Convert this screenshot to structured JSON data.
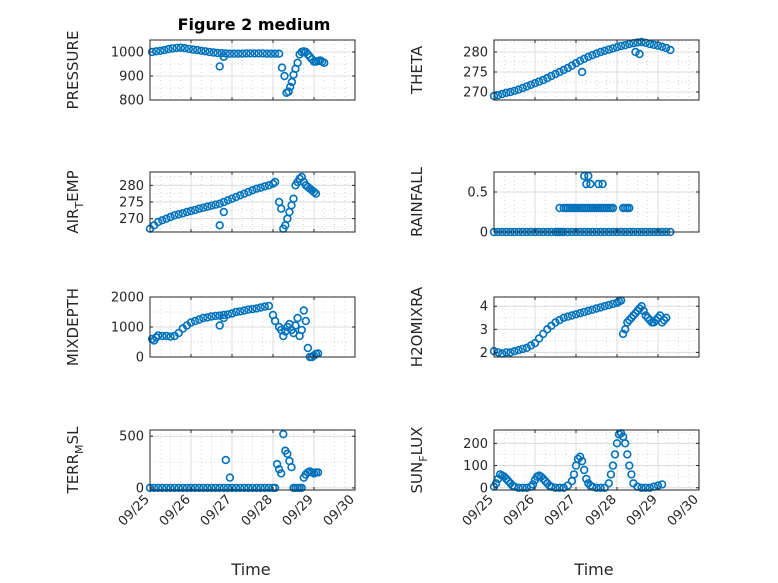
{
  "figure": {
    "title": "Figure 2 medium",
    "xlabel": "Time",
    "marker_color": "#0072BD"
  },
  "chart_data": [
    {
      "type": "scatter",
      "ylabel_main": "PRESSURE",
      "ylabel_sub": "",
      "ylabel_tail": "",
      "ylim": [
        800,
        1050
      ],
      "yticks": [
        800,
        900,
        1000
      ],
      "yminor": [
        850,
        950
      ],
      "xlim": [
        0,
        5
      ],
      "xticks": [
        0,
        1,
        2,
        3,
        4,
        5
      ],
      "xticklabels": [
        "09/25",
        "09/26",
        "09/27",
        "09/28",
        "09/29",
        "09/30"
      ],
      "show_xticklabels": false,
      "grid": true,
      "x": [
        0.05,
        0.15,
        0.25,
        0.35,
        0.45,
        0.55,
        0.65,
        0.75,
        0.85,
        0.95,
        1.05,
        1.15,
        1.25,
        1.35,
        1.45,
        1.55,
        1.65,
        1.75,
        1.85,
        1.95,
        2.05,
        2.15,
        2.25,
        2.35,
        2.45,
        2.55,
        2.65,
        2.75,
        2.85,
        2.95,
        3.05,
        3.15,
        3.22,
        3.28,
        3.33,
        3.38,
        3.42,
        3.46,
        3.5,
        3.55,
        3.6,
        3.65,
        3.7,
        3.75,
        3.8,
        3.85,
        3.9,
        3.95,
        4.0,
        4.05,
        4.1,
        4.15,
        4.2,
        4.25,
        1.7,
        1.8
      ],
      "y": [
        1000,
        1003,
        1005,
        1008,
        1012,
        1015,
        1017,
        1018,
        1016,
        1013,
        1010,
        1008,
        1005,
        1003,
        1000,
        998,
        996,
        995,
        994,
        993,
        993,
        993,
        993,
        994,
        994,
        994,
        994,
        994,
        993,
        993,
        993,
        993,
        935,
        900,
        830,
        835,
        855,
        875,
        905,
        930,
        955,
        990,
        1000,
        1003,
        1000,
        990,
        980,
        970,
        960,
        960,
        962,
        965,
        960,
        955,
        940,
        980
      ]
    },
    {
      "type": "scatter",
      "ylabel_main": "THETA",
      "ylabel_sub": "",
      "ylabel_tail": "",
      "ylim": [
        268,
        283
      ],
      "yticks": [
        270,
        275,
        280
      ],
      "yminor": [
        272.5,
        277.5,
        282.5
      ],
      "xlim": [
        0,
        5
      ],
      "xticks": [
        0,
        1,
        2,
        3,
        4,
        5
      ],
      "xticklabels": [
        "09/25",
        "09/26",
        "09/27",
        "09/28",
        "09/29",
        "09/30"
      ],
      "show_xticklabels": false,
      "grid": true,
      "x": [
        0.0,
        0.1,
        0.2,
        0.3,
        0.4,
        0.5,
        0.6,
        0.7,
        0.8,
        0.9,
        1.0,
        1.1,
        1.2,
        1.3,
        1.4,
        1.5,
        1.6,
        1.7,
        1.8,
        1.9,
        2.0,
        2.1,
        2.2,
        2.3,
        2.4,
        2.5,
        2.6,
        2.7,
        2.8,
        2.9,
        3.0,
        3.1,
        3.2,
        3.3,
        3.4,
        3.5,
        3.6,
        3.7,
        3.8,
        3.9,
        4.0,
        4.1,
        4.2,
        4.3,
        2.15,
        3.45,
        3.55
      ],
      "y": [
        269,
        269.2,
        269.5,
        269.8,
        270,
        270.3,
        270.6,
        271,
        271.4,
        271.8,
        272.2,
        272.6,
        273,
        273.5,
        274,
        274.5,
        275,
        275.5,
        276,
        276.6,
        277.2,
        277.8,
        278.3,
        278.8,
        279.2,
        279.6,
        280,
        280.3,
        280.6,
        280.9,
        281.2,
        281.5,
        281.7,
        282,
        282.2,
        282.4,
        282.5,
        282.3,
        282,
        281.8,
        281.6,
        281.3,
        281,
        280.5,
        275,
        280,
        279.5
      ]
    },
    {
      "type": "scatter",
      "ylabel_main": "AIR",
      "ylabel_sub": "T",
      "ylabel_tail": "EMP",
      "ylim": [
        266,
        284
      ],
      "yticks": [
        270,
        275,
        280
      ],
      "yminor": [
        267.5,
        272.5,
        277.5,
        282.5
      ],
      "xlim": [
        0,
        5
      ],
      "xticks": [
        0,
        1,
        2,
        3,
        4,
        5
      ],
      "xticklabels": [
        "09/25",
        "09/26",
        "09/27",
        "09/28",
        "09/29",
        "09/30"
      ],
      "show_xticklabels": false,
      "grid": true,
      "x": [
        0.0,
        0.1,
        0.2,
        0.3,
        0.4,
        0.5,
        0.6,
        0.7,
        0.8,
        0.9,
        1.0,
        1.1,
        1.2,
        1.3,
        1.4,
        1.5,
        1.6,
        1.7,
        1.8,
        1.9,
        2.0,
        2.1,
        2.2,
        2.3,
        2.4,
        2.5,
        2.6,
        2.7,
        2.8,
        2.9,
        3.0,
        3.05,
        3.15,
        3.2,
        3.25,
        3.3,
        3.35,
        3.4,
        3.45,
        3.5,
        3.55,
        3.6,
        3.65,
        3.7,
        3.75,
        3.8,
        3.85,
        3.9,
        3.95,
        4.0,
        4.05,
        1.7,
        1.8
      ],
      "y": [
        267,
        268,
        269,
        269.5,
        270,
        270.5,
        271,
        271.3,
        271.6,
        272,
        272.3,
        272.6,
        273,
        273.3,
        273.6,
        273.9,
        274.2,
        274.5,
        275,
        275.5,
        276,
        276.5,
        277,
        277.5,
        278,
        278.5,
        279,
        279.3,
        279.7,
        280,
        280.5,
        281,
        275,
        273,
        267,
        268,
        270,
        272,
        274,
        276,
        280,
        281,
        282,
        282.5,
        281,
        280,
        279.5,
        279,
        278.5,
        278,
        277.5,
        268,
        272
      ]
    },
    {
      "type": "scatter",
      "ylabel_main": "RAINFALL",
      "ylabel_sub": "",
      "ylabel_tail": "",
      "ylim": [
        0,
        0.75
      ],
      "yticks": [
        0,
        0.5
      ],
      "yminor": [
        0.25
      ],
      "xlim": [
        0,
        5
      ],
      "xticks": [
        0,
        1,
        2,
        3,
        4,
        5
      ],
      "xticklabels": [
        "09/25",
        "09/26",
        "09/27",
        "09/28",
        "09/29",
        "09/30"
      ],
      "show_xticklabels": false,
      "grid": true,
      "x": [
        0.0,
        0.1,
        0.2,
        0.3,
        0.4,
        0.5,
        0.6,
        0.7,
        0.8,
        0.9,
        1.0,
        1.1,
        1.2,
        1.3,
        1.4,
        1.5,
        1.6,
        1.7,
        1.8,
        1.9,
        2.0,
        2.1,
        2.2,
        2.3,
        2.4,
        2.5,
        2.6,
        2.7,
        2.8,
        2.9,
        3.0,
        3.1,
        3.2,
        3.3,
        3.4,
        3.5,
        3.6,
        3.7,
        3.8,
        3.9,
        4.0,
        4.1,
        4.2,
        4.3,
        1.6,
        1.7,
        1.75,
        1.8,
        1.85,
        1.9,
        1.95,
        2.0,
        2.05,
        2.1,
        2.15,
        2.2,
        2.25,
        2.3,
        2.35,
        2.4,
        2.45,
        2.5,
        2.55,
        2.6,
        2.65,
        2.7,
        2.75,
        2.8,
        2.85,
        2.9,
        3.15,
        3.2,
        3.25,
        3.3,
        2.25,
        2.35,
        2.55,
        2.65,
        2.2,
        2.3,
        1.55,
        1.65
      ],
      "y": [
        0,
        0,
        0,
        0,
        0,
        0,
        0,
        0,
        0,
        0,
        0,
        0,
        0,
        0,
        0,
        0,
        0,
        0,
        0,
        0,
        0,
        0,
        0,
        0,
        0,
        0,
        0,
        0,
        0,
        0,
        0,
        0,
        0,
        0,
        0,
        0,
        0,
        0,
        0,
        0,
        0,
        0,
        0,
        0,
        0.3,
        0.3,
        0.3,
        0.3,
        0.3,
        0.3,
        0.3,
        0.3,
        0.3,
        0.3,
        0.3,
        0.3,
        0.3,
        0.3,
        0.3,
        0.3,
        0.3,
        0.3,
        0.3,
        0.3,
        0.3,
        0.3,
        0.3,
        0.3,
        0.3,
        0.3,
        0.3,
        0.3,
        0.3,
        0.3,
        0.6,
        0.6,
        0.6,
        0.6,
        0.7,
        0.7,
        0,
        0
      ]
    },
    {
      "type": "scatter",
      "ylabel_main": "MIXDEPTH",
      "ylabel_sub": "",
      "ylabel_tail": "",
      "ylim": [
        0,
        2000
      ],
      "yticks": [
        0,
        1000,
        2000
      ],
      "yminor": [
        500,
        1500
      ],
      "xlim": [
        0,
        5
      ],
      "xticks": [
        0,
        1,
        2,
        3,
        4,
        5
      ],
      "xticklabels": [
        "09/25",
        "09/26",
        "09/27",
        "09/28",
        "09/29",
        "09/30"
      ],
      "show_xticklabels": false,
      "grid": true,
      "x": [
        0.05,
        0.1,
        0.15,
        0.2,
        0.3,
        0.4,
        0.5,
        0.6,
        0.7,
        0.8,
        0.9,
        1.0,
        1.1,
        1.2,
        1.3,
        1.4,
        1.5,
        1.6,
        1.7,
        1.8,
        1.9,
        2.0,
        2.1,
        2.2,
        2.3,
        2.4,
        2.5,
        2.6,
        2.7,
        2.8,
        2.9,
        3.0,
        3.05,
        3.15,
        3.2,
        3.25,
        3.3,
        3.35,
        3.4,
        3.45,
        3.5,
        3.55,
        3.6,
        3.65,
        3.7,
        3.75,
        3.8,
        3.85,
        3.9,
        3.95,
        4.0,
        4.05,
        4.1,
        1.7,
        1.8
      ],
      "y": [
        600,
        550,
        650,
        720,
        700,
        700,
        680,
        700,
        800,
        950,
        1050,
        1150,
        1200,
        1250,
        1300,
        1320,
        1350,
        1370,
        1380,
        1400,
        1420,
        1450,
        1500,
        1520,
        1550,
        1580,
        1600,
        1620,
        1650,
        1680,
        1700,
        1400,
        1200,
        1000,
        900,
        700,
        850,
        1000,
        1100,
        900,
        800,
        1050,
        1300,
        700,
        900,
        1550,
        1200,
        300,
        0,
        0,
        50,
        100,
        120,
        1050,
        1300
      ]
    },
    {
      "type": "scatter",
      "ylabel_main": "H2OMIXRA",
      "ylabel_sub": "",
      "ylabel_tail": "",
      "ylim": [
        1.8,
        4.4
      ],
      "yticks": [
        2,
        3,
        4
      ],
      "yminor": [
        2.5,
        3.5
      ],
      "xlim": [
        0,
        5
      ],
      "xticks": [
        0,
        1,
        2,
        3,
        4,
        5
      ],
      "xticklabels": [
        "09/25",
        "09/26",
        "09/27",
        "09/28",
        "09/29",
        "09/30"
      ],
      "show_xticklabels": false,
      "grid": true,
      "x": [
        0.0,
        0.1,
        0.2,
        0.3,
        0.4,
        0.5,
        0.6,
        0.7,
        0.8,
        0.9,
        1.0,
        1.1,
        1.2,
        1.3,
        1.4,
        1.5,
        1.6,
        1.7,
        1.8,
        1.9,
        2.0,
        2.1,
        2.2,
        2.3,
        2.4,
        2.5,
        2.6,
        2.7,
        2.8,
        2.9,
        3.0,
        3.05,
        3.1,
        3.15,
        3.2,
        3.25,
        3.3,
        3.35,
        3.4,
        3.45,
        3.5,
        3.55,
        3.6,
        3.65,
        3.7,
        3.75,
        3.8,
        3.85,
        3.9,
        3.95,
        4.0,
        4.05,
        4.1,
        4.15,
        4.2
      ],
      "y": [
        2.05,
        2.0,
        1.95,
        2.0,
        2.0,
        2.05,
        2.1,
        2.15,
        2.2,
        2.3,
        2.4,
        2.6,
        2.8,
        3.0,
        3.15,
        3.3,
        3.4,
        3.5,
        3.55,
        3.6,
        3.65,
        3.7,
        3.75,
        3.8,
        3.85,
        3.9,
        3.95,
        4.0,
        4.05,
        4.1,
        4.15,
        4.2,
        4.25,
        2.8,
        3.0,
        3.3,
        3.4,
        3.5,
        3.6,
        3.7,
        3.8,
        3.9,
        4.0,
        3.8,
        3.6,
        3.5,
        3.4,
        3.3,
        3.3,
        3.4,
        3.5,
        3.6,
        3.3,
        3.4,
        3.5
      ]
    },
    {
      "type": "scatter",
      "ylabel_main": "TERR",
      "ylabel_sub": "M",
      "ylabel_tail": "SL",
      "ylim": [
        -20,
        560
      ],
      "yticks": [
        0,
        500
      ],
      "yminor": [
        250
      ],
      "xlim": [
        0,
        5
      ],
      "xticks": [
        0,
        1,
        2,
        3,
        4,
        5
      ],
      "xticklabels": [
        "09/25",
        "09/26",
        "09/27",
        "09/28",
        "09/29",
        "09/30"
      ],
      "show_xticklabels": true,
      "grid": true,
      "x": [
        0.0,
        0.1,
        0.2,
        0.3,
        0.4,
        0.5,
        0.6,
        0.7,
        0.8,
        0.9,
        1.0,
        1.1,
        1.2,
        1.3,
        1.4,
        1.5,
        1.6,
        1.7,
        1.8,
        1.9,
        2.0,
        2.1,
        2.2,
        2.3,
        2.4,
        2.5,
        2.6,
        2.7,
        2.8,
        2.9,
        3.0,
        3.05,
        3.1,
        3.15,
        3.2,
        3.25,
        3.3,
        3.35,
        3.4,
        3.45,
        3.5,
        3.55,
        3.6,
        3.65,
        3.7,
        3.75,
        3.8,
        3.85,
        3.9,
        3.95,
        4.0,
        4.05,
        4.1,
        1.85,
        1.95
      ],
      "y": [
        0,
        0,
        0,
        0,
        0,
        0,
        0,
        0,
        0,
        0,
        0,
        0,
        0,
        0,
        0,
        0,
        0,
        0,
        0,
        0,
        0,
        0,
        0,
        0,
        0,
        0,
        0,
        0,
        0,
        0,
        0,
        0,
        230,
        180,
        140,
        520,
        360,
        330,
        260,
        200,
        0,
        0,
        0,
        0,
        0,
        100,
        130,
        150,
        160,
        150,
        140,
        150,
        150,
        270,
        100
      ]
    },
    {
      "type": "scatter",
      "ylabel_main": "SUN",
      "ylabel_sub": "F",
      "ylabel_tail": "LUX",
      "ylim": [
        -10,
        260
      ],
      "yticks": [
        0,
        100,
        200
      ],
      "yminor": [
        50,
        150,
        250
      ],
      "xlim": [
        0,
        5
      ],
      "xticks": [
        0,
        1,
        2,
        3,
        4,
        5
      ],
      "xticklabels": [
        "09/25",
        "09/26",
        "09/27",
        "09/28",
        "09/29",
        "09/30"
      ],
      "show_xticklabels": true,
      "grid": true,
      "x": [
        0.0,
        0.05,
        0.1,
        0.15,
        0.2,
        0.25,
        0.3,
        0.35,
        0.4,
        0.45,
        0.5,
        0.6,
        0.7,
        0.8,
        0.9,
        0.95,
        1.0,
        1.05,
        1.1,
        1.15,
        1.2,
        1.25,
        1.3,
        1.35,
        1.4,
        1.5,
        1.6,
        1.7,
        1.8,
        1.9,
        1.95,
        2.0,
        2.05,
        2.1,
        2.15,
        2.2,
        2.25,
        2.3,
        2.35,
        2.4,
        2.5,
        2.6,
        2.7,
        2.8,
        2.85,
        2.9,
        2.95,
        3.0,
        3.05,
        3.1,
        3.15,
        3.2,
        3.25,
        3.3,
        3.35,
        3.4,
        3.5,
        3.6,
        3.7,
        3.8,
        3.9,
        4.0,
        4.1
      ],
      "y": [
        5,
        20,
        40,
        60,
        55,
        50,
        40,
        30,
        20,
        10,
        5,
        0,
        0,
        0,
        5,
        15,
        35,
        50,
        55,
        50,
        40,
        30,
        20,
        10,
        5,
        0,
        0,
        0,
        10,
        30,
        60,
        100,
        130,
        140,
        120,
        80,
        40,
        20,
        10,
        5,
        0,
        0,
        0,
        20,
        60,
        100,
        150,
        200,
        240,
        245,
        230,
        200,
        150,
        100,
        60,
        20,
        5,
        0,
        0,
        0,
        5,
        10,
        15
      ]
    }
  ]
}
